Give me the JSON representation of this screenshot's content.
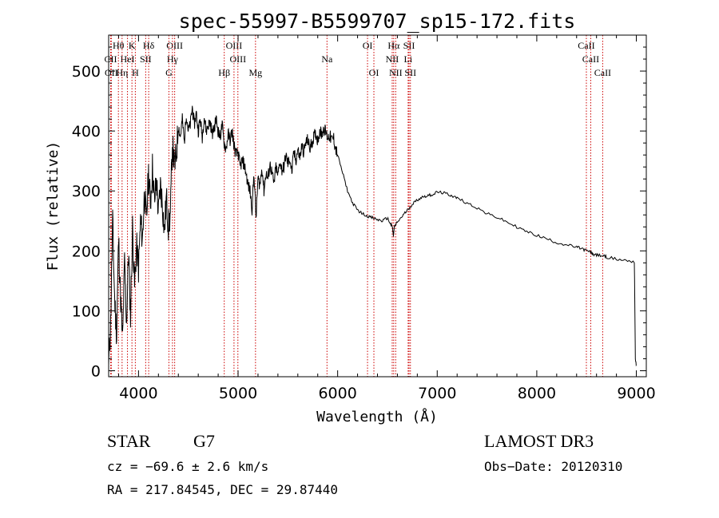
{
  "chart_data": {
    "type": "line",
    "title": "spec-55997-B5599707_sp15-172.fits",
    "xlabel": "Wavelength (Å)",
    "ylabel": "Flux (relative)",
    "xlim": [
      3700,
      9100
    ],
    "ylim": [
      -10,
      560
    ],
    "xticks": [
      4000,
      5000,
      6000,
      7000,
      8000,
      9000
    ],
    "yticks": [
      0,
      100,
      200,
      300,
      400,
      500
    ],
    "grid": false,
    "series": [
      {
        "name": "flux",
        "x": [
          3700,
          3720,
          3740,
          3760,
          3780,
          3800,
          3820,
          3840,
          3860,
          3880,
          3900,
          3920,
          3940,
          3960,
          3980,
          4000,
          4020,
          4040,
          4060,
          4080,
          4100,
          4120,
          4140,
          4160,
          4180,
          4200,
          4220,
          4240,
          4260,
          4280,
          4300,
          4320,
          4340,
          4360,
          4380,
          4400,
          4420,
          4440,
          4460,
          4480,
          4500,
          4520,
          4540,
          4560,
          4580,
          4600,
          4620,
          4640,
          4660,
          4680,
          4700,
          4720,
          4740,
          4760,
          4780,
          4800,
          4820,
          4840,
          4860,
          4880,
          4900,
          4920,
          4940,
          4960,
          4980,
          5000,
          5020,
          5040,
          5060,
          5080,
          5100,
          5120,
          5140,
          5160,
          5180,
          5200,
          5220,
          5240,
          5260,
          5280,
          5300,
          5320,
          5340,
          5360,
          5380,
          5400,
          5420,
          5440,
          5460,
          5480,
          5500,
          5520,
          5540,
          5560,
          5580,
          5600,
          5620,
          5640,
          5660,
          5680,
          5700,
          5720,
          5740,
          5760,
          5780,
          5800,
          5820,
          5840,
          5860,
          5880,
          5900,
          5920,
          5940,
          5960,
          5980,
          6000,
          6050,
          6100,
          6150,
          6200,
          6250,
          6300,
          6350,
          6400,
          6450,
          6500,
          6530,
          6550,
          6560,
          6570,
          6600,
          6650,
          6700,
          6750,
          6800,
          6850,
          6900,
          6950,
          7000,
          7050,
          7100,
          7150,
          7200,
          7300,
          7400,
          7500,
          7600,
          7700,
          7800,
          7900,
          8000,
          8100,
          8200,
          8300,
          8400,
          8450,
          8500,
          8540,
          8560,
          8600,
          8660,
          8700,
          8800,
          8900,
          8980,
          8990,
          9000
        ],
        "values": [
          10,
          80,
          250,
          120,
          60,
          220,
          120,
          50,
          180,
          80,
          200,
          90,
          240,
          140,
          210,
          170,
          250,
          220,
          300,
          250,
          330,
          280,
          340,
          280,
          320,
          260,
          310,
          280,
          230,
          290,
          240,
          260,
          380,
          340,
          360,
          410,
          390,
          420,
          380,
          430,
          400,
          410,
          440,
          410,
          430,
          400,
          420,
          390,
          425,
          400,
          410,
          415,
          395,
          405,
          420,
          400,
          390,
          410,
          380,
          370,
          395,
          385,
          400,
          375,
          360,
          365,
          340,
          350,
          345,
          330,
          310,
          300,
          270,
          330,
          255,
          320,
          310,
          340,
          300,
          330,
          320,
          345,
          330,
          310,
          340,
          325,
          350,
          335,
          340,
          360,
          345,
          355,
          330,
          365,
          350,
          370,
          355,
          375,
          365,
          380,
          385,
          370,
          380,
          390,
          395,
          385,
          400,
          395,
          405,
          398,
          390,
          392,
          385,
          388,
          370,
          360,
          330,
          300,
          280,
          268,
          262,
          258,
          255,
          252,
          250,
          255,
          245,
          240,
          225,
          240,
          248,
          258,
          268,
          278,
          285,
          290,
          292,
          294,
          298,
          297,
          295,
          292,
          288,
          280,
          272,
          262,
          256,
          248,
          240,
          232,
          226,
          220,
          214,
          210,
          206,
          204,
          200,
          198,
          195,
          193,
          192,
          190,
          186,
          184,
          182,
          20,
          10
        ]
      }
    ],
    "lines": [
      {
        "label": "Hθ",
        "x": 3798,
        "row": 1
      },
      {
        "label": "K",
        "x": 3934,
        "row": 1
      },
      {
        "label": "Hδ",
        "x": 4102,
        "row": 1
      },
      {
        "label": "OIII",
        "x": 4363,
        "row": 1
      },
      {
        "label": "OIII",
        "x": 4959,
        "row": 1
      },
      {
        "label": "OI",
        "x": 6300,
        "row": 1
      },
      {
        "label": "Hα",
        "x": 6563,
        "row": 1
      },
      {
        "label": "SII",
        "x": 6717,
        "row": 1
      },
      {
        "label": "CaII",
        "x": 8498,
        "row": 1
      },
      {
        "label": "CII",
        "x": 3720,
        "row": 2
      },
      {
        "label": "HeI",
        "x": 3889,
        "row": 2
      },
      {
        "label": "SII",
        "x": 4072,
        "row": 2
      },
      {
        "label": "Hγ",
        "x": 4341,
        "row": 2
      },
      {
        "label": "OIII",
        "x": 4998,
        "row": 2
      },
      {
        "label": "Na",
        "x": 5893,
        "row": 2
      },
      {
        "label": "NII",
        "x": 6548,
        "row": 2
      },
      {
        "label": "Li",
        "x": 6708,
        "row": 2
      },
      {
        "label": "CaII",
        "x": 8542,
        "row": 2
      },
      {
        "label": "OII",
        "x": 3727,
        "row": 3
      },
      {
        "label": "Hη",
        "x": 3835,
        "row": 3
      },
      {
        "label": "H",
        "x": 3968,
        "row": 3
      },
      {
        "label": "G",
        "x": 4305,
        "row": 3
      },
      {
        "label": "Hβ",
        "x": 4861,
        "row": 3
      },
      {
        "label": "Mg",
        "x": 5175,
        "row": 3
      },
      {
        "label": "OI",
        "x": 6364,
        "row": 3
      },
      {
        "label": "NII",
        "x": 6583,
        "row": 3
      },
      {
        "label": "SII",
        "x": 6731,
        "row": 3
      },
      {
        "label": "CaII",
        "x": 8662,
        "row": 3
      }
    ]
  },
  "info": {
    "class": "STAR",
    "subclass": "G7",
    "survey": "LAMOST DR3",
    "cz": "cz = −69.6 ± 2.6 km/s",
    "obs_date": "Obs−Date: 20120310",
    "radec": "RA = 217.84545, DEC =  29.87440"
  }
}
